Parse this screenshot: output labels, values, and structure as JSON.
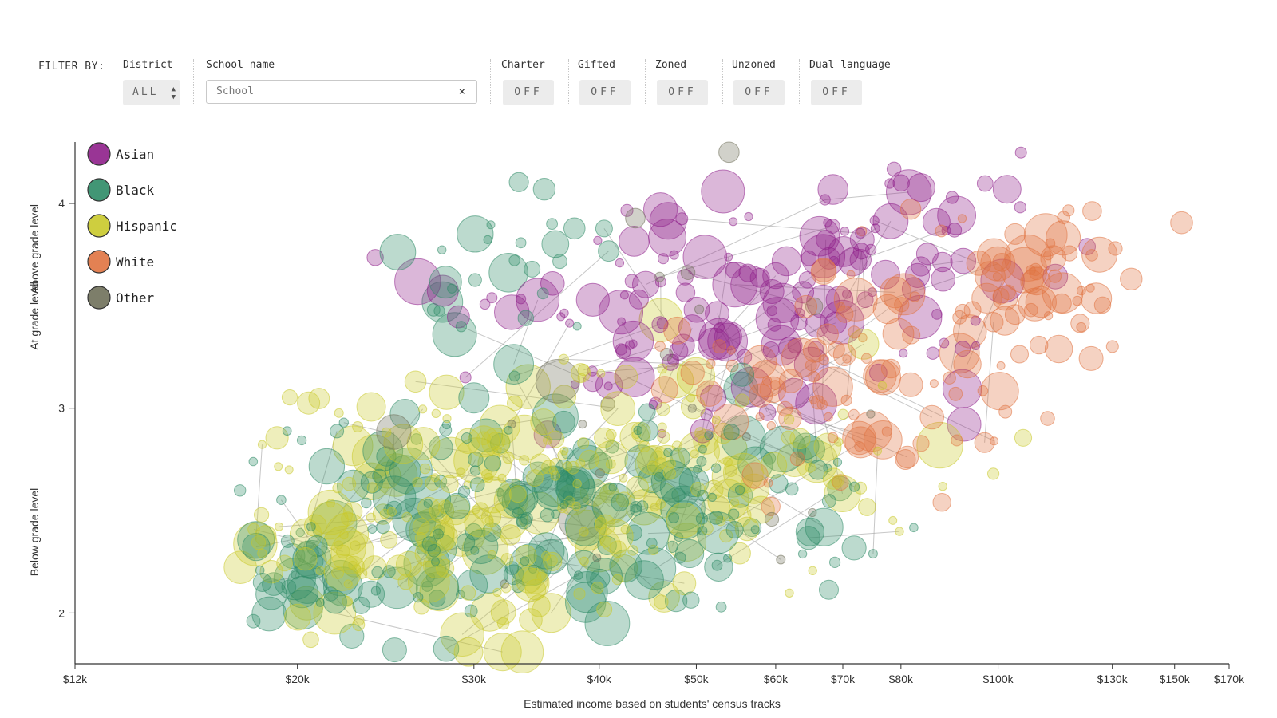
{
  "filters": {
    "prefix": "FILTER BY:",
    "district": {
      "label": "District",
      "value": "ALL"
    },
    "school_name": {
      "label": "School name",
      "placeholder": "School",
      "clear": "×"
    },
    "charter": {
      "label": "Charter",
      "value": "OFF"
    },
    "gifted": {
      "label": "Gifted",
      "value": "OFF"
    },
    "zoned": {
      "label": "Zoned",
      "value": "OFF"
    },
    "unzoned": {
      "label": "Unzoned",
      "value": "OFF"
    },
    "dual_language": {
      "label": "Dual language",
      "value": "OFF"
    }
  },
  "colors": {
    "Asian": "#8e1f8a",
    "Black": "#2e8b66",
    "Hispanic": "#c9c92a",
    "White": "#e07340",
    "Other": "#6f705a",
    "link": "#999999",
    "axis": "#333333"
  },
  "chart_data": {
    "type": "scatter",
    "x_scale": "log",
    "xlabel": "Estimated income based on students' census tracks",
    "y_labels": {
      "above": "Above grade level",
      "at": "At grade level",
      "below": "Below grade level"
    },
    "xlim": [
      12000,
      170000
    ],
    "ylim": [
      1.76,
      4.3
    ],
    "x_ticks": [
      {
        "value": 12000,
        "label": "$12k"
      },
      {
        "value": 20000,
        "label": "$20k"
      },
      {
        "value": 30000,
        "label": "$30k"
      },
      {
        "value": 40000,
        "label": "$40k"
      },
      {
        "value": 50000,
        "label": "$50k"
      },
      {
        "value": 60000,
        "label": "$60k"
      },
      {
        "value": 70000,
        "label": "$70k"
      },
      {
        "value": 80000,
        "label": "$80k"
      },
      {
        "value": 100000,
        "label": "$100k"
      },
      {
        "value": 130000,
        "label": "$130k"
      },
      {
        "value": 150000,
        "label": "$150k"
      },
      {
        "value": 170000,
        "label": "$170k"
      }
    ],
    "y_ticks": [
      {
        "value": 2,
        "label": "2"
      },
      {
        "value": 3,
        "label": "3"
      },
      {
        "value": 4,
        "label": "4"
      }
    ],
    "legend": [
      "Asian",
      "Black",
      "Hispanic",
      "White",
      "Other"
    ],
    "point_size_note": "bubble area scales with number of students",
    "series": [
      {
        "name": "Asian",
        "clusters": [
          {
            "income": 48000,
            "score": 3.45,
            "spread_income": 0.22,
            "spread_score": 0.28,
            "count": 90
          },
          {
            "income": 75000,
            "score": 3.6,
            "spread_income": 0.2,
            "spread_score": 0.3,
            "count": 50
          },
          {
            "income": 90000,
            "score": 3.85,
            "spread_income": 0.15,
            "spread_score": 0.2,
            "count": 20
          },
          {
            "income": 27000,
            "score": 3.5,
            "spread_income": 0.1,
            "spread_score": 0.1,
            "count": 3
          }
        ]
      },
      {
        "name": "Black",
        "clusters": [
          {
            "income": 30000,
            "score": 2.4,
            "spread_income": 0.25,
            "spread_score": 0.27,
            "count": 130
          },
          {
            "income": 52000,
            "score": 2.55,
            "spread_income": 0.2,
            "spread_score": 0.25,
            "count": 80
          },
          {
            "income": 32000,
            "score": 3.6,
            "spread_income": 0.12,
            "spread_score": 0.25,
            "count": 30
          },
          {
            "income": 20000,
            "score": 2.2,
            "spread_income": 0.08,
            "spread_score": 0.12,
            "count": 20
          }
        ]
      },
      {
        "name": "Hispanic",
        "clusters": [
          {
            "income": 30000,
            "score": 2.5,
            "spread_income": 0.24,
            "spread_score": 0.3,
            "count": 150
          },
          {
            "income": 45000,
            "score": 2.7,
            "spread_income": 0.18,
            "spread_score": 0.25,
            "count": 90
          },
          {
            "income": 70000,
            "score": 2.8,
            "spread_income": 0.15,
            "spread_score": 0.25,
            "count": 25
          },
          {
            "income": 22000,
            "score": 2.3,
            "spread_income": 0.1,
            "spread_score": 0.15,
            "count": 30
          }
        ]
      },
      {
        "name": "White",
        "clusters": [
          {
            "income": 78000,
            "score": 3.2,
            "spread_income": 0.15,
            "spread_score": 0.28,
            "count": 70
          },
          {
            "income": 110000,
            "score": 3.6,
            "spread_income": 0.12,
            "spread_score": 0.22,
            "count": 60
          },
          {
            "income": 55000,
            "score": 3.1,
            "spread_income": 0.1,
            "spread_score": 0.15,
            "count": 20
          }
        ]
      },
      {
        "name": "Other",
        "clusters": [
          {
            "income": 45000,
            "score": 3.0,
            "spread_income": 0.3,
            "spread_score": 0.5,
            "count": 22
          }
        ]
      }
    ]
  }
}
